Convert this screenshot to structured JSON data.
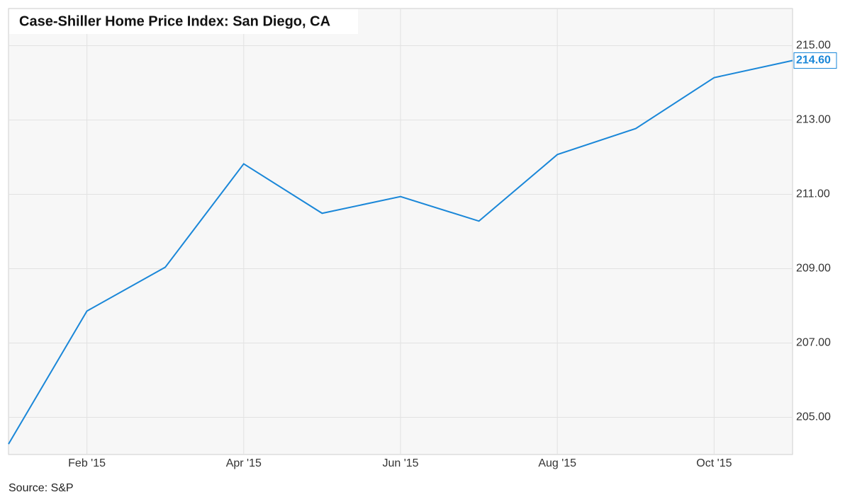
{
  "chart_data": {
    "type": "line",
    "title": "Case-Shiller Home Price Index: San Diego, CA",
    "source": "Source: S&P",
    "x": [
      "2015-01",
      "2015-02",
      "2015-03",
      "2015-04",
      "2015-05",
      "2015-06",
      "2015-07",
      "2015-08",
      "2015-09",
      "2015-10",
      "2015-11"
    ],
    "series": [
      {
        "color": "#1a87d8",
        "values": [
          204.28,
          207.86,
          209.04,
          211.82,
          210.49,
          210.94,
          210.28,
          212.07,
          212.77,
          214.14,
          214.6
        ],
        "value_labels": [
          null,
          null,
          null,
          null,
          null,
          null,
          null,
          null,
          null,
          null,
          "214.60"
        ]
      }
    ],
    "xlim": [
      "2015-01",
      "2015-11"
    ],
    "xticks": [
      {
        "value": "2015-02",
        "label": "Feb '15"
      },
      {
        "value": "2015-04",
        "label": "Apr '15"
      },
      {
        "value": "2015-06",
        "label": "Jun '15"
      },
      {
        "value": "2015-08",
        "label": "Aug '15"
      },
      {
        "value": "2015-10",
        "label": "Oct '15"
      }
    ],
    "ylim": [
      204,
      216
    ],
    "yticks": [
      {
        "value": 205,
        "label": "205.00"
      },
      {
        "value": 207,
        "label": "207.00"
      },
      {
        "value": 209,
        "label": "209.00"
      },
      {
        "value": 211,
        "label": "211.00"
      },
      {
        "value": 213,
        "label": "213.00"
      },
      {
        "value": 215,
        "label": "215.00"
      }
    ],
    "grid": true
  }
}
